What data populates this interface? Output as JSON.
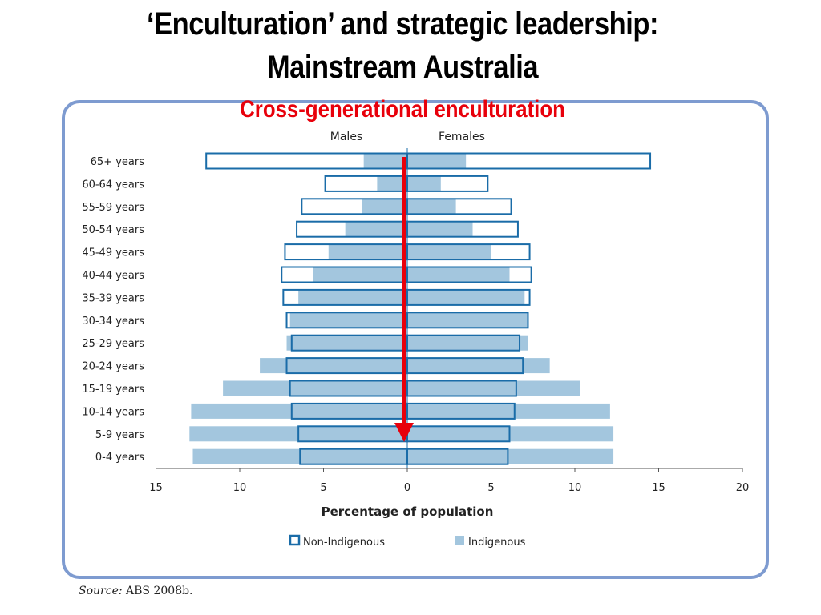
{
  "slide": {
    "title_line1": "‘Enculturation’ and strategic leadership:",
    "title_line2": "Mainstream Australia",
    "subtitle": "Cross-generational enculturation"
  },
  "source": {
    "label": "Source:",
    "text": "ABS 2008b."
  },
  "chart_data": {
    "type": "bar",
    "orientation": "horizontal",
    "subtype": "population-pyramid",
    "side_labels": {
      "left": "Males",
      "right": "Females"
    },
    "xlabel": "Percentage of population",
    "xlim": [
      -15,
      20
    ],
    "x_ticks": [
      -15,
      -10,
      -5,
      0,
      5,
      10,
      15,
      20
    ],
    "x_tick_labels": [
      "15",
      "10",
      "5",
      "0",
      "5",
      "10",
      "15",
      "20"
    ],
    "categories": [
      "65+ years",
      "60-64 years",
      "55-59 years",
      "50-54 years",
      "45-49 years",
      "40-44 years",
      "35-39 years",
      "30-34 years",
      "25-29 years",
      "20-24 years",
      "15-19 years",
      "10-14 years",
      "5-9 years",
      "0-4 years"
    ],
    "series": [
      {
        "name": "Non-Indigenous",
        "style": "outline",
        "color": "#1a6ca8",
        "males": [
          12.0,
          4.9,
          6.3,
          6.6,
          7.3,
          7.5,
          7.4,
          7.2,
          6.9,
          7.2,
          7.0,
          6.9,
          6.5,
          6.4
        ],
        "females": [
          14.5,
          4.8,
          6.2,
          6.6,
          7.3,
          7.4,
          7.3,
          7.2,
          6.7,
          6.9,
          6.5,
          6.4,
          6.1,
          6.0
        ]
      },
      {
        "name": "Indigenous",
        "style": "filled",
        "color": "#a3c6de",
        "males": [
          2.6,
          1.8,
          2.7,
          3.7,
          4.7,
          5.6,
          6.5,
          7.0,
          7.2,
          8.8,
          11.0,
          12.9,
          13.0,
          12.8
        ],
        "females": [
          3.5,
          2.0,
          2.9,
          3.9,
          5.0,
          6.1,
          7.0,
          7.2,
          7.2,
          8.5,
          10.3,
          12.1,
          12.3,
          12.3
        ]
      }
    ],
    "annotation": {
      "type": "arrow",
      "color": "#e8000b",
      "direction": "down",
      "from_category": "65+ years",
      "to_category": "5-9 years"
    },
    "legend": {
      "position": "bottom",
      "items": [
        "Non-Indigenous",
        "Indigenous"
      ]
    }
  }
}
